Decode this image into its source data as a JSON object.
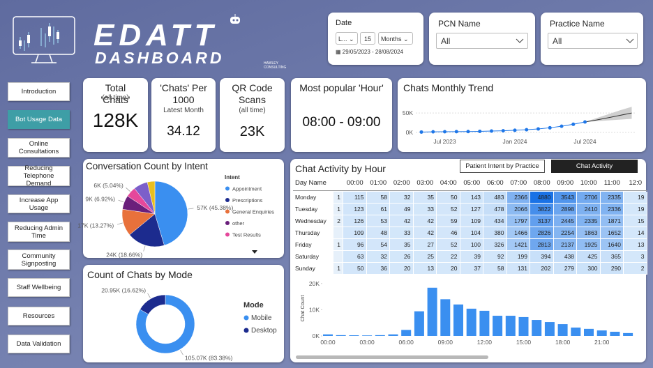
{
  "logo": {
    "title": "EDATT",
    "subtitle": "DASHBOARD",
    "brand": "HAWLEY CONSULTING"
  },
  "filters": {
    "date": {
      "label": "Date",
      "mode": "L...",
      "count": "15",
      "unit": "Months",
      "range": "29/05/2023 - 28/08/2024"
    },
    "pcn": {
      "label": "PCN Name",
      "value": "All"
    },
    "practice": {
      "label": "Practice Name",
      "value": "All"
    }
  },
  "nav": {
    "items": [
      "Introduction",
      "Bot Usage Data",
      "Online Consultations",
      "Reducing Telephone Demand",
      "Increase App Usage",
      "Reducing Admin Time",
      "Community Signposting",
      "Staff Wellbeing",
      "Resources",
      "Data Validation"
    ],
    "active": 1
  },
  "kpis": [
    {
      "title": "Total 'Chats'",
      "note": "(all time)",
      "value": "128K"
    },
    {
      "title": "'Chats' Per 1000",
      "note": "Latest Month",
      "value": "34.12"
    },
    {
      "title": "QR Code Scans",
      "note": "(all time)",
      "value": "23K"
    },
    {
      "title": "Most popular 'Hour'",
      "value": "08:00 - 09:00"
    }
  ],
  "table": {
    "title": "Chat Activity by Hour",
    "tabs": [
      "Patient Intent by Practice",
      "Chat Activity"
    ],
    "active_tab": 1,
    "header": [
      "Day Name",
      null,
      "00:00",
      "01:00",
      "02:00",
      "03:00",
      "04:00",
      "05:00",
      "06:00",
      "07:00",
      "08:00",
      "09:00",
      "10:00",
      "11:00",
      "12:0"
    ],
    "rows": [
      [
        "Monday",
        1,
        115,
        58,
        32,
        35,
        50,
        143,
        483,
        2366,
        4880,
        3543,
        2706,
        2335,
        "19"
      ],
      [
        "Tuesday",
        1,
        123,
        61,
        49,
        33,
        52,
        127,
        478,
        2066,
        3822,
        2898,
        2410,
        2336,
        "19"
      ],
      [
        "Wednesday",
        2,
        126,
        53,
        42,
        42,
        59,
        109,
        434,
        1797,
        3137,
        2445,
        2335,
        1871,
        "15"
      ],
      [
        "Thursday",
        null,
        109,
        48,
        33,
        42,
        46,
        104,
        380,
        1466,
        2826,
        2254,
        1863,
        1652,
        "14"
      ],
      [
        "Friday",
        1,
        96,
        54,
        35,
        27,
        52,
        100,
        326,
        1421,
        2813,
        2137,
        1925,
        1640,
        "13"
      ],
      [
        "Saturday",
        null,
        63,
        32,
        26,
        25,
        22,
        39,
        92,
        199,
        394,
        438,
        425,
        365,
        "3"
      ],
      [
        "Sunday",
        1,
        50,
        36,
        20,
        13,
        20,
        37,
        58,
        131,
        202,
        279,
        300,
        290,
        "2"
      ]
    ]
  },
  "chart_data": [
    {
      "type": "line",
      "title": "Chats Monthly Trend",
      "categories": [
        null,
        null,
        "Jul 2023",
        null,
        null,
        null,
        null,
        null,
        "Jan 2024",
        null,
        null,
        null,
        null,
        null,
        "Jul 2024",
        null,
        null,
        null,
        null
      ],
      "series": [
        {
          "color": "#1f77e8",
          "values": [
            1000,
            1500,
            1800,
            2000,
            2200,
            2800,
            3500,
            4200,
            5500,
            7000,
            9000,
            12000,
            16000,
            21000,
            27000,
            null,
            null,
            null,
            null
          ]
        }
      ],
      "forecast": {
        "color": "#333333",
        "band_color": "#cfcfcf",
        "values": [
          null,
          null,
          null,
          null,
          null,
          null,
          null,
          null,
          null,
          null,
          null,
          null,
          null,
          null,
          27000,
          32000,
          38000,
          44000,
          50000
        ],
        "lower": [
          null,
          null,
          null,
          null,
          null,
          null,
          null,
          null,
          null,
          null,
          null,
          null,
          null,
          null,
          27000,
          29000,
          31000,
          33000,
          35000
        ],
        "upper": [
          null,
          null,
          null,
          null,
          null,
          null,
          null,
          null,
          null,
          null,
          null,
          null,
          null,
          null,
          27000,
          37000,
          47000,
          57000,
          66000
        ]
      },
      "ylim": [
        0,
        70000
      ],
      "yticks": [
        {
          "value": 0,
          "label": "0K"
        },
        {
          "value": 50000,
          "label": "50K"
        }
      ],
      "grid": true
    },
    {
      "type": "pie",
      "title": "Conversation Count by Intent",
      "legend_title": "Intent",
      "categories": [
        "Appointment",
        "Prescriptions",
        "General Enquiries",
        "other",
        "Test Results",
        null,
        null
      ],
      "values": [
        45.38,
        18.66,
        13.27,
        6.92,
        5.04,
        7.0,
        3.73
      ],
      "value_labels": [
        "57K (45.38%)",
        "24K (18.66%)",
        "17K (13.27%)",
        "9K (6.92%)",
        "6K (5.04%)",
        null,
        null
      ],
      "colors": [
        "#3a8ff0",
        "#1c2b8e",
        "#e8713b",
        "#6a1f7b",
        "#e5489b",
        "#7c5fca",
        "#e8bf1f"
      ]
    },
    {
      "type": "donut",
      "title": "Count of Chats by Mode",
      "legend_title": "Mode",
      "categories": [
        "Mobile",
        "Desktop"
      ],
      "values": [
        83.38,
        16.62
      ],
      "value_labels": [
        "105.07K (83.38%)",
        "20.95K (16.62%)"
      ],
      "colors": [
        "#3a8ff0",
        "#1c2b8e"
      ]
    },
    {
      "type": "bar",
      "y_label": "Chat Count",
      "color": "#3a8ff0",
      "categories": [
        "00:00",
        null,
        null,
        "03:00",
        null,
        null,
        "06:00",
        null,
        null,
        "09:00",
        null,
        null,
        "12:00",
        null,
        null,
        "15:00",
        null,
        null,
        "18:00",
        null,
        null,
        "21:00",
        null,
        null
      ],
      "values": [
        600,
        300,
        250,
        200,
        300,
        600,
        2300,
        9400,
        18400,
        14000,
        12000,
        10400,
        9600,
        7700,
        7700,
        7200,
        6100,
        5300,
        4500,
        3200,
        2700,
        2100,
        1600,
        1100
      ],
      "ylim": [
        0,
        21000
      ],
      "yticks": [
        {
          "value": 0,
          "label": "0K"
        },
        {
          "value": 10000,
          "label": "10K"
        },
        {
          "value": 20000,
          "label": "20K"
        }
      ]
    }
  ]
}
